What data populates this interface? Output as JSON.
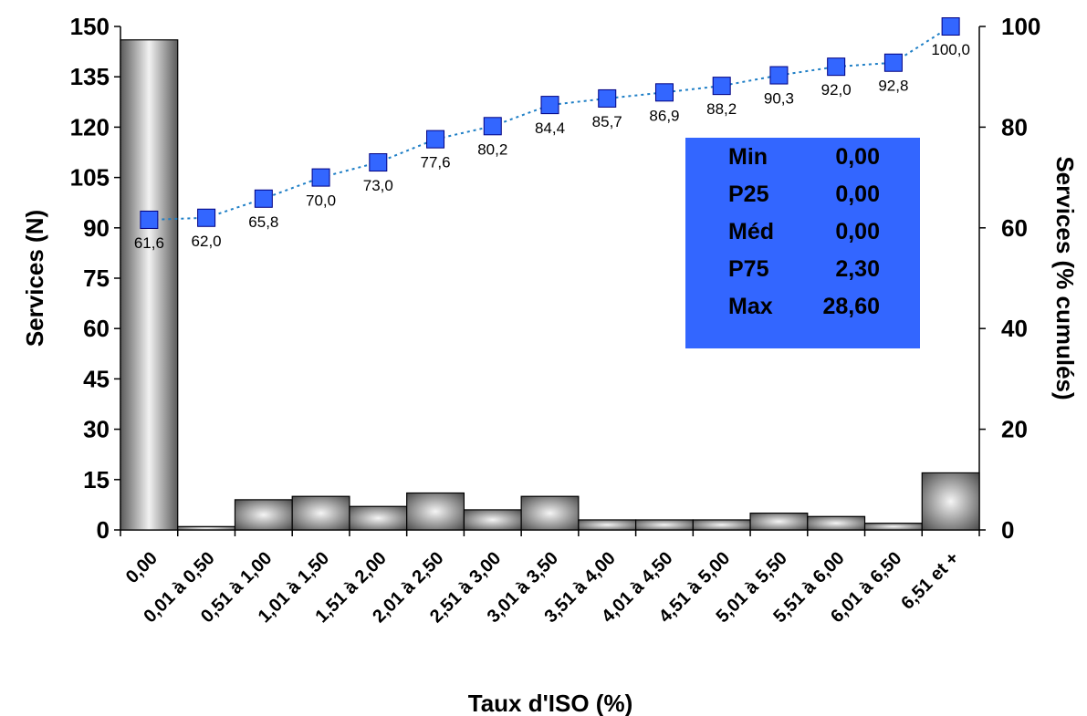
{
  "chart_data": {
    "type": "bar",
    "xlabel": "Taux d'ISO (%)",
    "ylabel": "Services (N)",
    "y2label": "Services (% cumulés)",
    "categories": [
      "0,00",
      "0,01 à 0,50",
      "0,51 à 1,00",
      "1,01 à 1,50",
      "1,51 à 2,00",
      "2,01 à 2,50",
      "2,51 à 3,00",
      "3,01 à 3,50",
      "3,51 à 4,00",
      "4,01 à 4,50",
      "4,51 à 5,00",
      "5,01 à 5,50",
      "5,51 à 6,00",
      "6,01 à 6,50",
      "6,51 et +"
    ],
    "ylim": [
      0,
      150
    ],
    "yticks": [
      0,
      15,
      30,
      45,
      60,
      75,
      90,
      105,
      120,
      135,
      150
    ],
    "y2lim": [
      0,
      100
    ],
    "y2ticks": [
      0,
      20,
      40,
      60,
      80,
      100
    ],
    "grid": false,
    "series": [
      {
        "kind": "bar",
        "axis": "left",
        "values": [
          146,
          1,
          9,
          10,
          7,
          11,
          6,
          10,
          3,
          3,
          3,
          5,
          4,
          2,
          17
        ]
      },
      {
        "kind": "line",
        "axis": "right",
        "values": [
          61.6,
          62.0,
          65.8,
          70.0,
          73.0,
          77.6,
          80.2,
          84.4,
          85.7,
          86.9,
          88.2,
          90.3,
          92.0,
          92.8,
          100.0
        ],
        "labels": [
          "61,6",
          "62,0",
          "65,8",
          "70,0",
          "73,0",
          "77,6",
          "80,2",
          "84,4",
          "85,7",
          "86,9",
          "88,2",
          "90,3",
          "92,0",
          "92,8",
          "100,0"
        ],
        "color": "#3366ff"
      }
    ],
    "stats_box": {
      "color": "#3366ff",
      "rows": [
        {
          "label": "Min",
          "value": "0,00"
        },
        {
          "label": "P25",
          "value": "0,00"
        },
        {
          "label": "Méd",
          "value": "0,00"
        },
        {
          "label": "P75",
          "value": "2,30"
        },
        {
          "label": "Max",
          "value": "28,60"
        }
      ]
    }
  }
}
